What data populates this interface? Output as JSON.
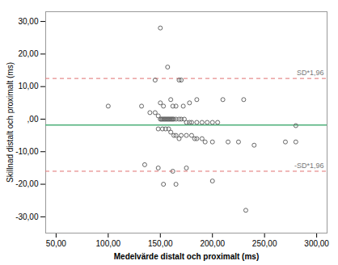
{
  "chart_data": {
    "type": "scatter",
    "xlabel": "Medelvärde distalt och proximalt (ms)",
    "ylabel": "Skillnad distalt och proximalt (ms)",
    "xlim": [
      40,
      310
    ],
    "ylim": [
      -35,
      33
    ],
    "xticks": [
      {
        "value": 50,
        "label": "50,00"
      },
      {
        "value": 100,
        "label": "100,00"
      },
      {
        "value": 150,
        "label": "150,00"
      },
      {
        "value": 200,
        "label": "200,00"
      },
      {
        "value": 250,
        "label": "250,00"
      },
      {
        "value": 300,
        "label": "300,00"
      }
    ],
    "yticks": [
      {
        "value": -30,
        "label": "-30,00"
      },
      {
        "value": -20,
        "label": "-20,00"
      },
      {
        "value": -10,
        "label": "-10,00"
      },
      {
        "value": 0,
        "label": ",00"
      },
      {
        "value": 10,
        "label": "10,00"
      },
      {
        "value": 20,
        "label": "20,00"
      },
      {
        "value": 30,
        "label": "30,00"
      }
    ],
    "grid": false,
    "color": "#666666",
    "marker": "circle",
    "reference_lines": [
      {
        "y": -1.8,
        "color": "#4caf78",
        "line_style": "solid"
      },
      {
        "y": 12.5,
        "color": "#e07070",
        "line_style": "dashed",
        "label": "SD*1,96"
      },
      {
        "y": -16.0,
        "color": "#e07070",
        "line_style": "dashed",
        "label": "-SD*1,96"
      }
    ],
    "x": [
      150,
      145,
      157,
      168,
      170,
      100,
      132,
      150,
      153,
      160,
      162,
      165,
      172,
      178,
      185,
      210,
      230,
      140,
      145,
      148,
      150,
      151,
      152,
      153,
      154,
      155,
      156,
      157,
      158,
      159,
      160,
      161,
      162,
      163,
      165,
      168,
      170,
      173,
      175,
      178,
      180,
      185,
      190,
      195,
      200,
      205,
      280,
      148,
      152,
      155,
      158,
      160,
      163,
      165,
      168,
      170,
      175,
      180,
      183,
      185,
      190,
      193,
      200,
      215,
      225,
      240,
      270,
      280,
      135,
      148,
      162,
      175,
      153,
      165,
      200,
      232
    ],
    "values": [
      28,
      12,
      16,
      12,
      12,
      4,
      4,
      5,
      4,
      6,
      4,
      4,
      4,
      5,
      6,
      6,
      6,
      2,
      2,
      1,
      0,
      0,
      0,
      0,
      0,
      0,
      0,
      0,
      0,
      0,
      0,
      0,
      0,
      0,
      0,
      0,
      0,
      0,
      -1,
      -1,
      -1,
      -1,
      -1,
      -1,
      -1,
      -1,
      -2,
      -3,
      -3,
      -3,
      -3,
      -4,
      -5,
      -5,
      -6,
      -5,
      -5,
      -5,
      -6,
      -6,
      -6,
      -7,
      -7,
      -7,
      -7,
      -8,
      -7,
      -7,
      -14,
      -15,
      -16,
      -15,
      -20,
      -20,
      -19,
      -28
    ]
  }
}
